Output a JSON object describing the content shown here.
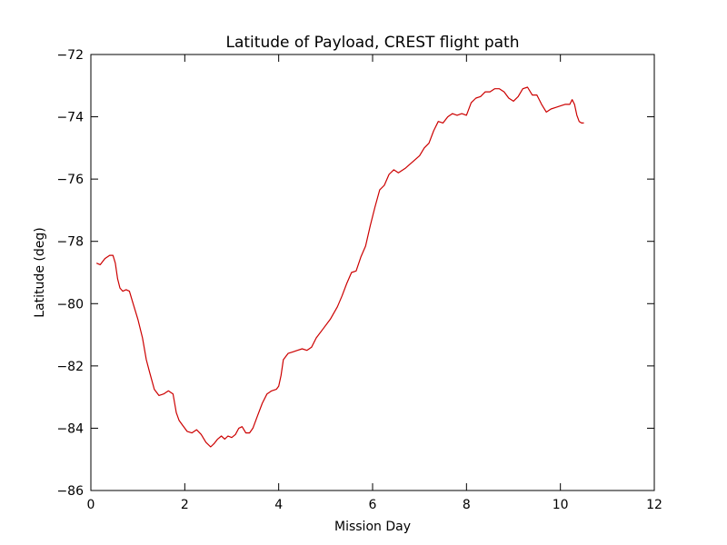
{
  "chart_data": {
    "type": "line",
    "title": "Latitude of Payload, CREST flight path",
    "xlabel": "Mission Day",
    "ylabel": "Latitude (deg)",
    "xlim": [
      0,
      12
    ],
    "ylim": [
      -86,
      -72
    ],
    "xticks": [
      0,
      2,
      4,
      6,
      8,
      10,
      12
    ],
    "xtick_labels": [
      "0",
      "2",
      "4",
      "6",
      "8",
      "10",
      "12"
    ],
    "yticks": [
      -86,
      -84,
      -82,
      -80,
      -78,
      -76,
      -74,
      -72
    ],
    "ytick_labels": [
      "−86",
      "−84",
      "−82",
      "−80",
      "−78",
      "−76",
      "−74",
      "−72"
    ],
    "grid": false,
    "series": [
      {
        "color": "#cc0000",
        "x": [
          0.12,
          0.2,
          0.3,
          0.4,
          0.47,
          0.52,
          0.57,
          0.62,
          0.68,
          0.75,
          0.82,
          0.9,
          1.0,
          1.1,
          1.18,
          1.25,
          1.35,
          1.45,
          1.55,
          1.65,
          1.75,
          1.82,
          1.88,
          1.95,
          2.05,
          2.15,
          2.25,
          2.35,
          2.45,
          2.55,
          2.62,
          2.7,
          2.78,
          2.85,
          2.92,
          3.0,
          3.08,
          3.15,
          3.22,
          3.3,
          3.38,
          3.45,
          3.55,
          3.65,
          3.75,
          3.85,
          3.95,
          4.0,
          4.05,
          4.1,
          4.2,
          4.3,
          4.4,
          4.5,
          4.6,
          4.7,
          4.8,
          4.95,
          5.1,
          5.25,
          5.35,
          5.45,
          5.55,
          5.65,
          5.75,
          5.85,
          5.95,
          6.05,
          6.15,
          6.25,
          6.35,
          6.45,
          6.55,
          6.7,
          6.85,
          7.0,
          7.1,
          7.2,
          7.3,
          7.4,
          7.5,
          7.6,
          7.7,
          7.8,
          7.9,
          8.0,
          8.1,
          8.2,
          8.3,
          8.4,
          8.5,
          8.6,
          8.7,
          8.8,
          8.9,
          9.0,
          9.1,
          9.2,
          9.3,
          9.4,
          9.5,
          9.6,
          9.7,
          9.8,
          9.9,
          10.0,
          10.1,
          10.2,
          10.25,
          10.3,
          10.35,
          10.4,
          10.45,
          10.5
        ],
        "y": [
          -78.7,
          -78.75,
          -78.55,
          -78.45,
          -78.45,
          -78.7,
          -79.2,
          -79.5,
          -79.6,
          -79.55,
          -79.6,
          -80.0,
          -80.5,
          -81.1,
          -81.8,
          -82.2,
          -82.75,
          -82.95,
          -82.9,
          -82.8,
          -82.9,
          -83.5,
          -83.75,
          -83.9,
          -84.1,
          -84.15,
          -84.05,
          -84.2,
          -84.45,
          -84.6,
          -84.5,
          -84.35,
          -84.25,
          -84.35,
          -84.25,
          -84.3,
          -84.2,
          -84.0,
          -83.95,
          -84.15,
          -84.15,
          -84.0,
          -83.6,
          -83.2,
          -82.9,
          -82.8,
          -82.75,
          -82.65,
          -82.3,
          -81.8,
          -81.6,
          -81.55,
          -81.5,
          -81.45,
          -81.5,
          -81.4,
          -81.1,
          -80.8,
          -80.5,
          -80.1,
          -79.75,
          -79.35,
          -79.0,
          -78.95,
          -78.5,
          -78.15,
          -77.5,
          -76.9,
          -76.35,
          -76.2,
          -75.85,
          -75.7,
          -75.8,
          -75.65,
          -75.45,
          -75.25,
          -75.0,
          -74.85,
          -74.45,
          -74.15,
          -74.2,
          -74.0,
          -73.9,
          -73.95,
          -73.9,
          -73.95,
          -73.55,
          -73.4,
          -73.35,
          -73.2,
          -73.2,
          -73.1,
          -73.1,
          -73.2,
          -73.4,
          -73.5,
          -73.35,
          -73.1,
          -73.05,
          -73.3,
          -73.3,
          -73.6,
          -73.85,
          -73.75,
          -73.7,
          -73.65,
          -73.6,
          -73.6,
          -73.45,
          -73.6,
          -73.95,
          -74.15,
          -74.2,
          -74.2
        ]
      }
    ]
  }
}
